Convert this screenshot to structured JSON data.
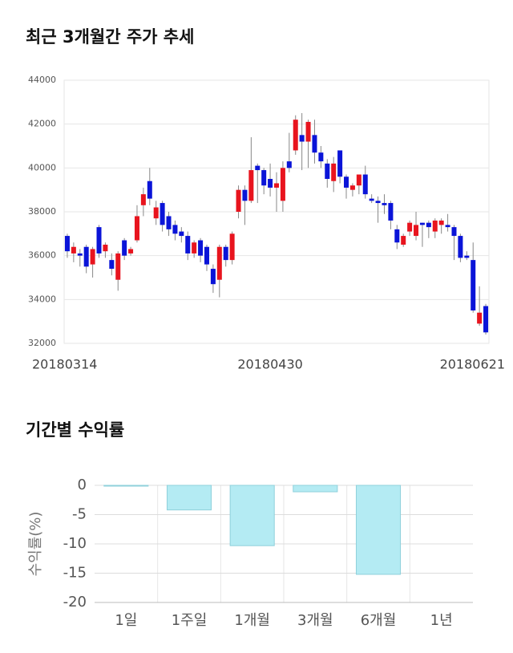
{
  "chart_data": [
    {
      "type": "candlestick",
      "title": "최근 3개월간 주가 추세",
      "categories": [
        "20180314",
        null,
        null,
        null,
        null,
        null,
        null,
        null,
        null,
        null,
        null,
        null,
        null,
        null,
        null,
        null,
        null,
        null,
        null,
        null,
        null,
        null,
        null,
        null,
        null,
        null,
        null,
        null,
        null,
        null,
        null,
        null,
        "20180430",
        null,
        null,
        null,
        null,
        null,
        null,
        null,
        null,
        null,
        null,
        null,
        null,
        null,
        null,
        null,
        null,
        null,
        null,
        null,
        null,
        null,
        null,
        null,
        null,
        null,
        null,
        null,
        null,
        null,
        null,
        null,
        null,
        null,
        "20180621"
      ],
      "open": [
        36900,
        36100,
        36100,
        36400,
        35600,
        37300,
        36200,
        35800,
        34900,
        36700,
        36100,
        36700,
        38300,
        39400,
        37700,
        38400,
        37800,
        37400,
        37100,
        36900,
        36100,
        36700,
        36400,
        35400,
        34900,
        36400,
        35800,
        38000,
        39000,
        38500,
        40100,
        39900,
        39500,
        39100,
        38500,
        40300,
        40800,
        41500,
        41200,
        41500,
        40700,
        40200,
        39400,
        40800,
        39600,
        39000,
        39200,
        39700,
        38600,
        38500,
        38400,
        38400,
        37200,
        36500,
        37100,
        36900,
        37500,
        37500,
        37100,
        37400,
        37400,
        37300,
        36900,
        36000,
        35800,
        32900,
        33700
      ],
      "high": [
        37000,
        36600,
        36300,
        36500,
        36400,
        37400,
        36600,
        36100,
        36200,
        36800,
        36400,
        38300,
        39100,
        40000,
        38500,
        38500,
        38000,
        37600,
        37300,
        37100,
        36700,
        36800,
        36500,
        35600,
        36500,
        36500,
        37100,
        39200,
        39200,
        41400,
        40200,
        40000,
        40200,
        39800,
        40300,
        41600,
        42400,
        42500,
        42200,
        42200,
        41000,
        40400,
        40500,
        40800,
        39700,
        39300,
        39700,
        40100,
        38800,
        38700,
        38800,
        38500,
        37400,
        37000,
        37600,
        38000,
        37500,
        37600,
        37700,
        37700,
        37900,
        37400,
        37000,
        36200,
        36600,
        34600,
        33800
      ],
      "low": [
        35900,
        35700,
        35500,
        35200,
        35000,
        35900,
        35900,
        35100,
        34400,
        35800,
        36000,
        36600,
        37800,
        38300,
        37400,
        37100,
        36900,
        36700,
        36600,
        35800,
        35900,
        35700,
        35300,
        34300,
        34100,
        35500,
        35600,
        37700,
        37400,
        38400,
        38400,
        38800,
        38700,
        38000,
        38000,
        39800,
        40600,
        39900,
        40000,
        40200,
        40000,
        39100,
        38900,
        39300,
        38600,
        38700,
        38800,
        38600,
        38400,
        37500,
        37900,
        37200,
        36300,
        36400,
        36900,
        36700,
        36400,
        36800,
        36800,
        37000,
        37100,
        35800,
        35700,
        35800,
        33400,
        32800,
        32400
      ],
      "close": [
        36200,
        36400,
        36000,
        35500,
        36300,
        36100,
        36500,
        35400,
        36100,
        36000,
        36300,
        37800,
        38800,
        38600,
        38200,
        37400,
        37200,
        37000,
        36900,
        36100,
        36600,
        36000,
        35600,
        34700,
        36400,
        35800,
        37000,
        39000,
        38500,
        39900,
        39900,
        39200,
        39100,
        39300,
        40000,
        40000,
        42200,
        41200,
        42100,
        40700,
        40300,
        39500,
        40200,
        39600,
        39100,
        39200,
        39700,
        38800,
        38500,
        38400,
        38300,
        37600,
        36600,
        36900,
        37500,
        37400,
        37400,
        37300,
        37600,
        37600,
        37300,
        36900,
        35900,
        35900,
        33500,
        33400,
        32500
      ],
      "up_color": "#e8141e",
      "down_color": "#0a14d8",
      "ylim": [
        32000,
        44000
      ],
      "yticks": [
        32000,
        34000,
        36000,
        38000,
        40000,
        42000,
        44000
      ],
      "grid": true
    },
    {
      "type": "bar",
      "title": "기간별 수익률",
      "y_label": "수익률(%)",
      "categories": [
        "1일",
        "1주일",
        "1개월",
        "3개월",
        "6개월",
        "1년"
      ],
      "values": [
        -0.1,
        -4.2,
        -10.3,
        -1.1,
        -15.2,
        null
      ],
      "color": "#b4ebf3",
      "ylim": [
        -20,
        0
      ],
      "yticks": [
        0,
        -5,
        -10,
        -15,
        -20
      ],
      "grid": true
    }
  ]
}
